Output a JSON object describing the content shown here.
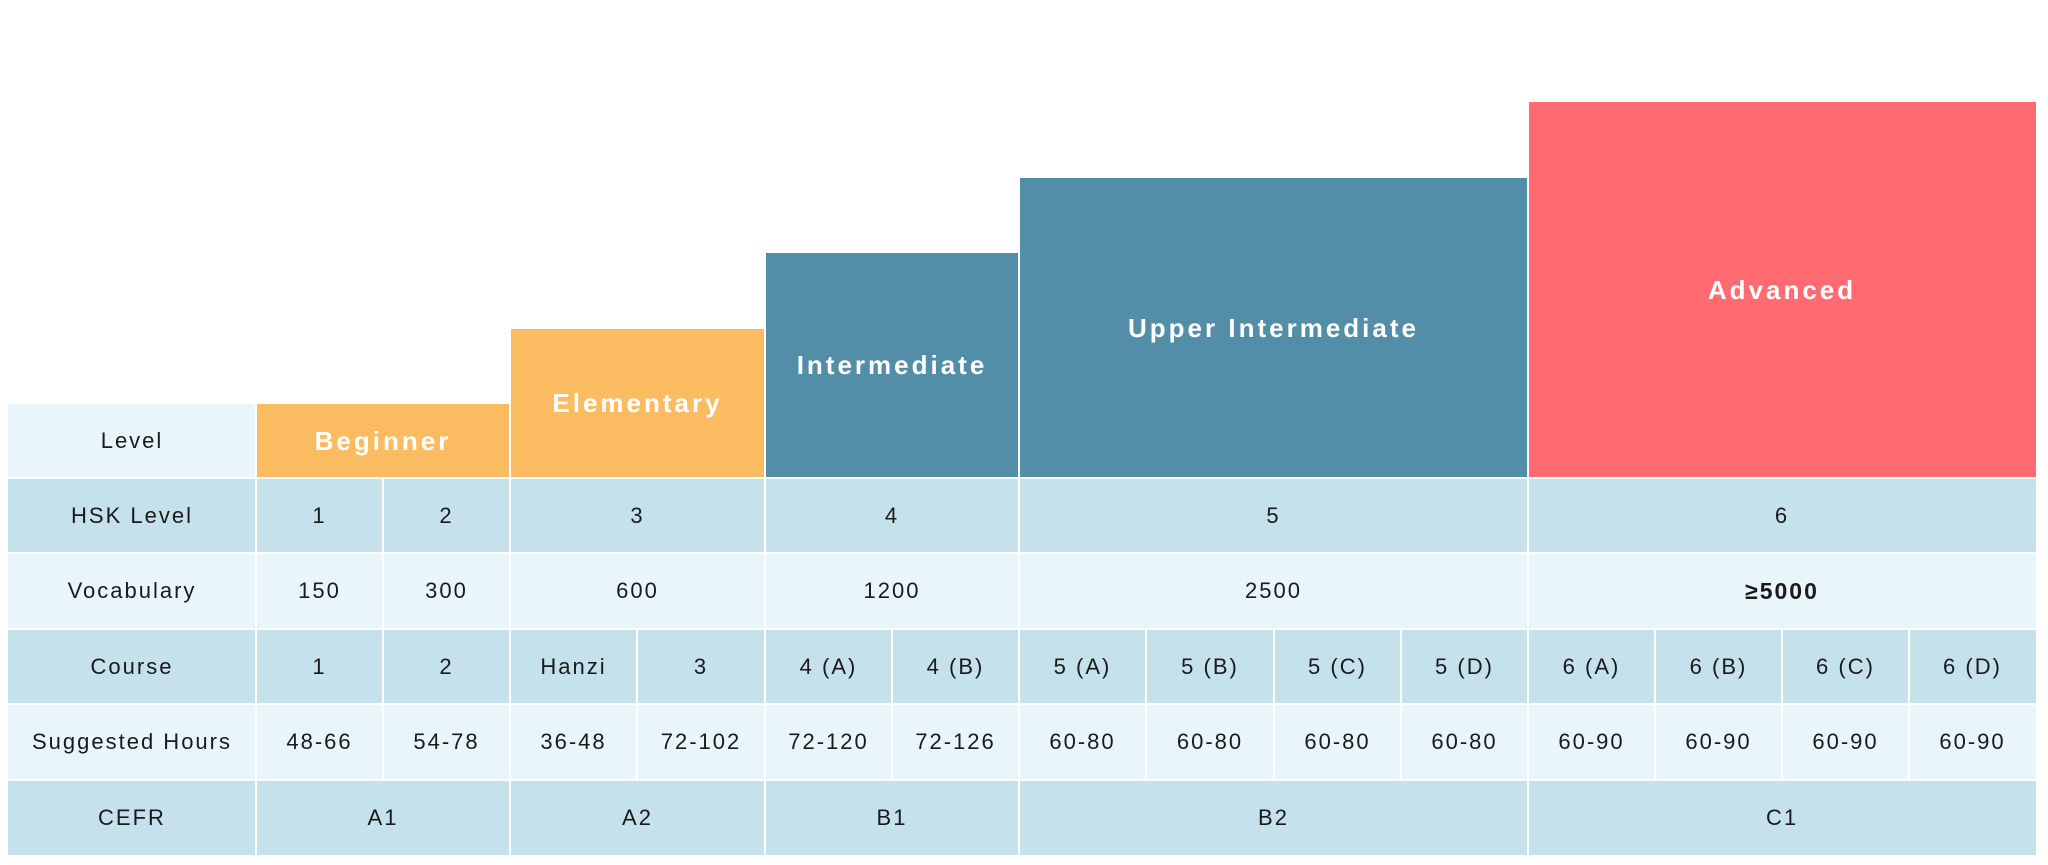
{
  "level_label": "Level",
  "levels": [
    {
      "name": "Beginner",
      "color": "#fbbb60"
    },
    {
      "name": "Elementary",
      "color": "#fbbb60"
    },
    {
      "name": "Intermediate",
      "color": "#538ea8"
    },
    {
      "name": "Upper Intermediate",
      "color": "#538ea8"
    },
    {
      "name": "Advanced",
      "color": "#ff6b70"
    }
  ],
  "rows": {
    "hsk": {
      "label": "HSK Level",
      "values": [
        "1",
        "2",
        "3",
        "4",
        "5",
        "6"
      ]
    },
    "vocabulary": {
      "label": "Vocabulary",
      "values": [
        "150",
        "300",
        "600",
        "1200",
        "2500",
        "≥5000"
      ]
    },
    "course": {
      "label": "Course",
      "values": [
        "1",
        "2",
        "Hanzi",
        "3",
        "4 (A)",
        "4 (B)",
        "5 (A)",
        "5 (B)",
        "5 (C)",
        "5 (D)",
        "6 (A)",
        "6 (B)",
        "6 (C)",
        "6 (D)"
      ]
    },
    "hours": {
      "label": "Suggested Hours",
      "values": [
        "48-66",
        "54-78",
        "36-48",
        "72-102",
        "72-120",
        "72-126",
        "60-80",
        "60-80",
        "60-80",
        "60-80",
        "60-90",
        "60-90",
        "60-90",
        "60-90"
      ]
    },
    "cefr": {
      "label": "CEFR",
      "values": [
        "A1",
        "A2",
        "B1",
        "B2",
        "C1"
      ]
    }
  },
  "colors": {
    "row_dark": "#c5e1ec",
    "row_light": "#e8f6fb"
  }
}
